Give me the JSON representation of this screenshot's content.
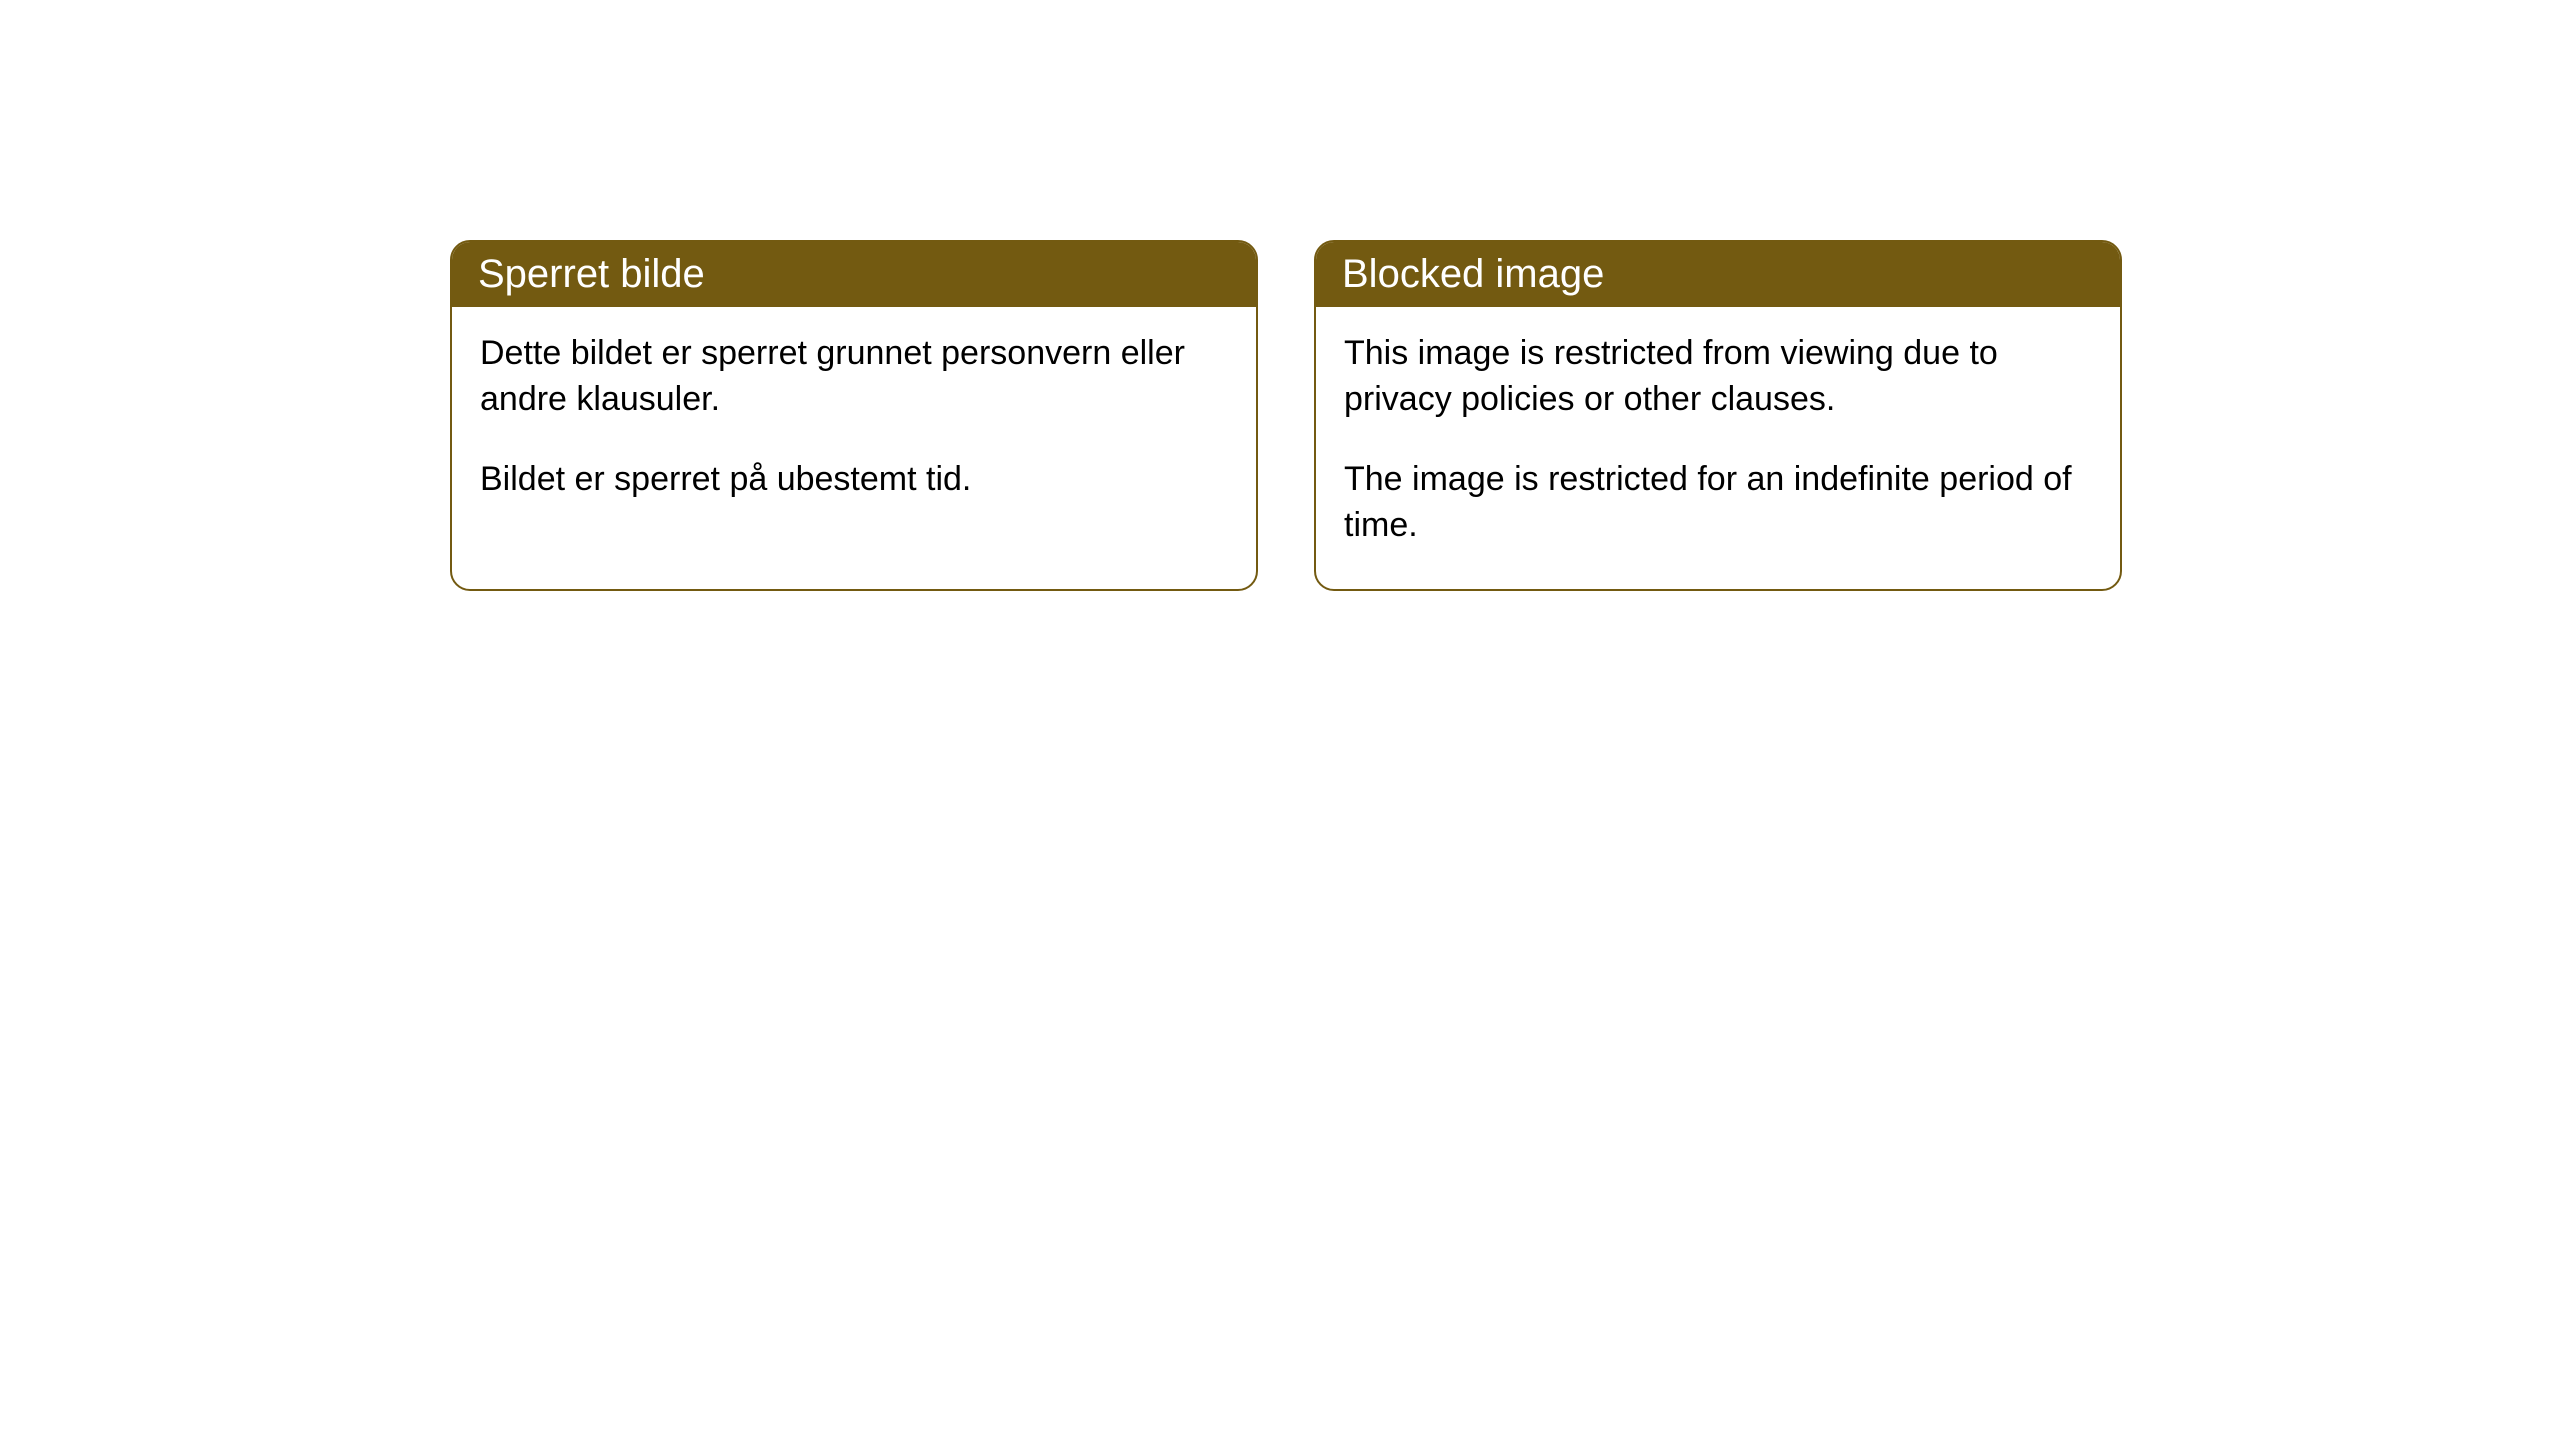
{
  "cards": [
    {
      "title": "Sperret bilde",
      "paragraph1": "Dette bildet er sperret grunnet personvern eller andre klausuler.",
      "paragraph2": "Bildet er sperret på ubestemt tid."
    },
    {
      "title": "Blocked image",
      "paragraph1": "This image is restricted from viewing due to privacy policies or other clauses.",
      "paragraph2": "The image is restricted for an indefinite period of time."
    }
  ],
  "style": {
    "header_background_color": "#735a11",
    "header_text_color": "#ffffff",
    "border_color": "#735a11",
    "body_background_color": "#ffffff",
    "body_text_color": "#000000",
    "border_radius": 20,
    "title_fontsize": 40,
    "body_fontsize": 34
  }
}
